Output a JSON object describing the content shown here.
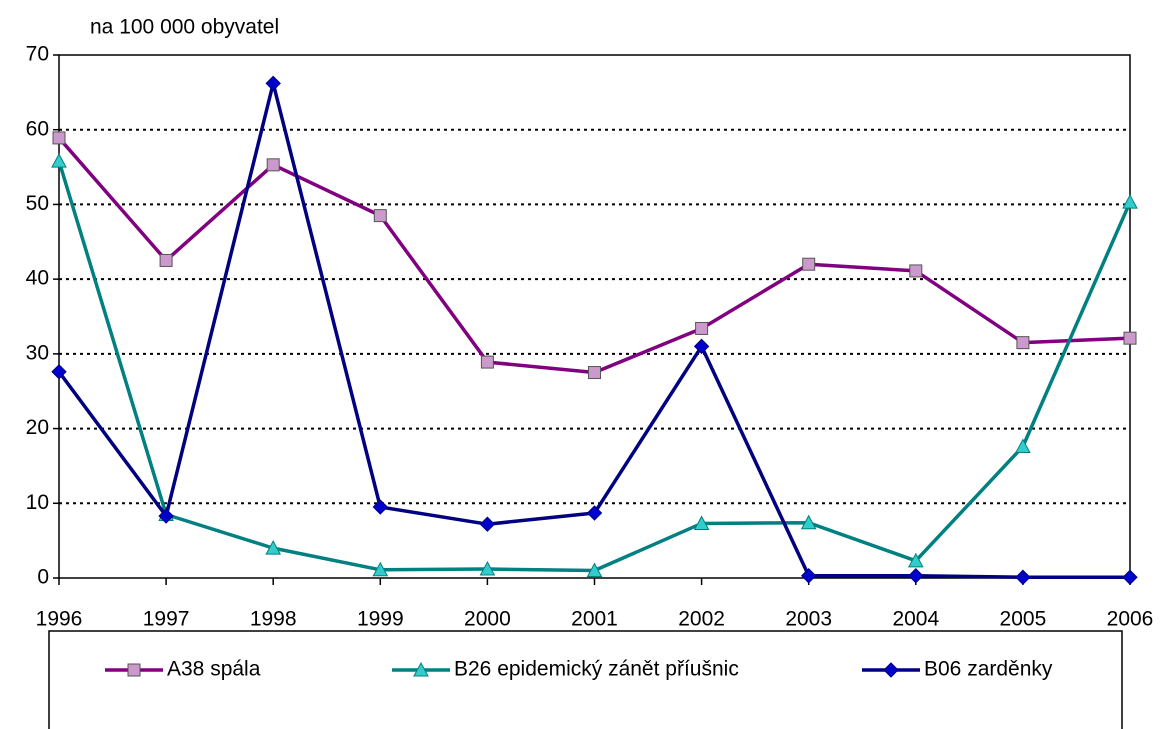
{
  "chart_data": {
    "type": "line",
    "y_label": "na 100 000 obyvatel",
    "categories": [
      "1996",
      "1997",
      "1998",
      "1999",
      "2000",
      "2001",
      "2002",
      "2003",
      "2004",
      "2005",
      "2006"
    ],
    "series": [
      {
        "name": "A38 spála",
        "color": "#800080",
        "marker_color": "#cc99cc",
        "marker": "square",
        "values": [
          58.9,
          42.5,
          55.3,
          48.5,
          28.9,
          27.5,
          33.4,
          42.0,
          41.1,
          31.5,
          32.1
        ]
      },
      {
        "name": "B26 epidemický zánět příušnic",
        "color": "#008080",
        "marker_color": "#33cccc",
        "marker": "triangle",
        "values": [
          55.8,
          8.5,
          4.0,
          1.1,
          1.2,
          1.0,
          7.3,
          7.4,
          2.3,
          17.6,
          50.3
        ]
      },
      {
        "name": "B06 zarděnky",
        "color": "#000080",
        "marker_color": "#0000cc",
        "marker": "diamond",
        "values": [
          27.6,
          8.3,
          66.2,
          9.5,
          7.2,
          8.7,
          31.0,
          0.3,
          0.3,
          0.1,
          0.1
        ]
      }
    ],
    "ylim": [
      0,
      70
    ],
    "yticks": [
      0,
      10,
      20,
      30,
      40,
      50,
      60,
      70
    ],
    "grid": true,
    "legend": "bottom"
  }
}
